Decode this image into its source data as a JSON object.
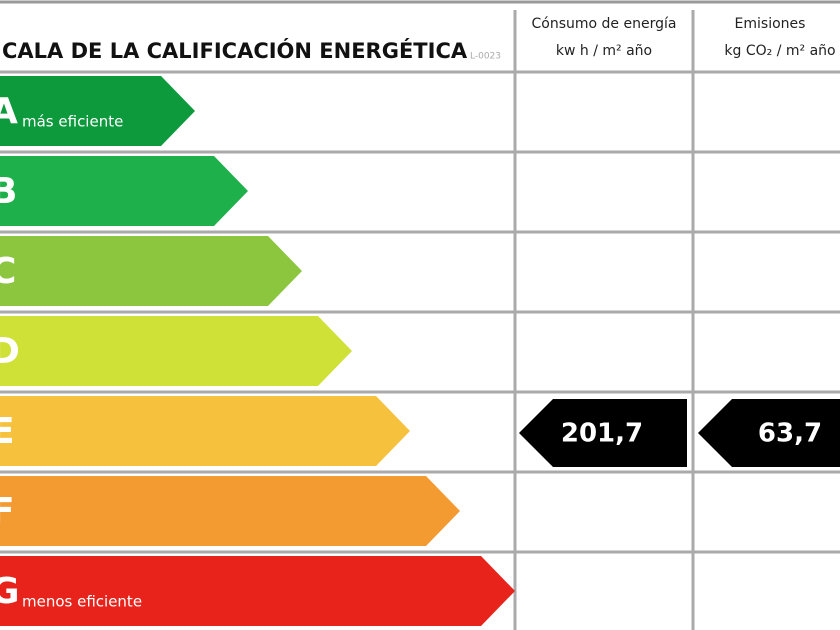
{
  "header": {
    "title": "CALA DE LA CALIFICACIÓN ENERGÉTICA",
    "code": "L-0023",
    "columns": [
      {
        "title": "Cónsumo de energía",
        "unit": "kw h / m² año"
      },
      {
        "title": "Emisiones",
        "unit": "kg CO₂ / m² año"
      }
    ]
  },
  "rows": [
    {
      "letter": "A",
      "note": "más eficiente",
      "color": "#0c9a3d"
    },
    {
      "letter": "B",
      "color": "#1eb04b"
    },
    {
      "letter": "C",
      "color": "#8cc63f"
    },
    {
      "letter": "D",
      "color": "#cfe036"
    },
    {
      "letter": "E",
      "color": "#f6c13c",
      "values": [
        "201,7",
        "63,7"
      ]
    },
    {
      "letter": "F",
      "color": "#f39a31"
    },
    {
      "letter": "G",
      "note": "menos eficiente",
      "color": "#e7231b"
    }
  ]
}
